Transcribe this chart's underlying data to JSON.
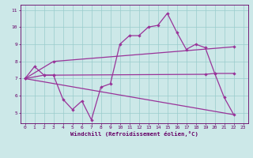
{
  "xlabel": "Windchill (Refroidissement éolien,°C)",
  "bg_color": "#cce8e8",
  "grid_color": "#99cccc",
  "line_color": "#993399",
  "spine_color": "#660066",
  "xlim": [
    -0.5,
    23.5
  ],
  "ylim": [
    4.4,
    11.3
  ],
  "xticks": [
    0,
    1,
    2,
    3,
    4,
    5,
    6,
    7,
    8,
    9,
    10,
    11,
    12,
    13,
    14,
    15,
    16,
    17,
    18,
    19,
    20,
    21,
    22,
    23
  ],
  "yticks": [
    5,
    6,
    7,
    8,
    9,
    10,
    11
  ],
  "line1_x": [
    0,
    1,
    2,
    3,
    4,
    5,
    6,
    7,
    8,
    9,
    10,
    11,
    12,
    13,
    14,
    15,
    16,
    17,
    18,
    19,
    20,
    21,
    22
  ],
  "line1_y": [
    7.0,
    7.7,
    7.2,
    7.2,
    5.8,
    5.2,
    5.7,
    4.6,
    6.5,
    6.7,
    9.0,
    9.5,
    9.5,
    10.0,
    10.1,
    10.8,
    9.7,
    8.7,
    9.0,
    8.8,
    7.3,
    5.9,
    4.9
  ],
  "line2_x": [
    0,
    2,
    3,
    19,
    20,
    22
  ],
  "line2_y": [
    7.0,
    7.2,
    7.2,
    7.25,
    7.3,
    7.3
  ],
  "line3_x": [
    0,
    3,
    22
  ],
  "line3_y": [
    7.0,
    8.0,
    8.85
  ],
  "line4_x": [
    0,
    22
  ],
  "line4_y": [
    7.0,
    4.9
  ]
}
